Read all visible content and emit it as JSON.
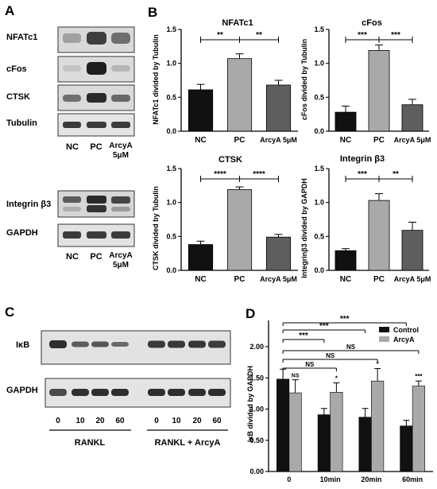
{
  "panels": {
    "A": "A",
    "B": "B",
    "C": "C",
    "D": "D"
  },
  "blots_a": {
    "rows1": [
      "NFATc1",
      "cFos",
      "CTSK",
      "Tubulin"
    ],
    "rows2": [
      "Integrin β3",
      "GAPDH"
    ],
    "lanes": [
      "NC",
      "PC",
      "ArcyA",
      "5μM"
    ]
  },
  "blots_c": {
    "rows": [
      "IκB",
      "GAPDH"
    ],
    "times": [
      "0",
      "10",
      "20",
      "60",
      "0",
      "10",
      "20",
      "60"
    ],
    "groups": [
      "RANKL",
      "RANKL + ArcyA"
    ]
  },
  "colors": {
    "NC": "#111111",
    "PC": "#a9a9a9",
    "ArcyA": "#5e5e5e",
    "Control": "#111111",
    "ArcyA_D": "#a9a9a9"
  },
  "chart_data": [
    {
      "type": "bar",
      "title": "NFATc1",
      "ylabel": "NFATc1 divided by Tubulin",
      "categories": [
        "NC",
        "PC",
        "ArcyA 5μM"
      ],
      "values": [
        0.61,
        1.07,
        0.68
      ],
      "errors": [
        0.08,
        0.07,
        0.07
      ],
      "ylim": [
        0,
        1.5
      ],
      "yticks": [
        "0.0",
        "0.5",
        "1.0",
        "1.5"
      ],
      "significance": [
        "**",
        "**"
      ]
    },
    {
      "type": "bar",
      "title": "cFos",
      "ylabel": "cFos divided by Tubulin",
      "categories": [
        "NC",
        "PC",
        "ArcyA 5μM"
      ],
      "values": [
        0.28,
        1.19,
        0.39
      ],
      "errors": [
        0.09,
        0.08,
        0.08
      ],
      "ylim": [
        0,
        1.5
      ],
      "yticks": [
        "0.0",
        "0.5",
        "1.0",
        "1.5"
      ],
      "significance": [
        "***",
        "***"
      ]
    },
    {
      "type": "bar",
      "title": "CTSK",
      "ylabel": "CTSK divided by Tubulin",
      "categories": [
        "NC",
        "PC",
        "ArcyA 5μM"
      ],
      "values": [
        0.38,
        1.19,
        0.49
      ],
      "errors": [
        0.05,
        0.04,
        0.04
      ],
      "ylim": [
        0,
        1.5
      ],
      "yticks": [
        "0.0",
        "0.5",
        "1.0",
        "1.5"
      ],
      "significance": [
        "****",
        "****"
      ]
    },
    {
      "type": "bar",
      "title": "Integrin β3",
      "ylabel": "Integrinβ3 divided by GAPDH",
      "categories": [
        "NC",
        "PC",
        "ArcyA 5μM"
      ],
      "values": [
        0.29,
        1.03,
        0.59
      ],
      "errors": [
        0.03,
        0.1,
        0.12
      ],
      "ylim": [
        0,
        1.5
      ],
      "yticks": [
        "0.0",
        "0.5",
        "1.0",
        "1.5"
      ],
      "significance": [
        "***",
        "**"
      ]
    },
    {
      "type": "bar",
      "ylabel": "IκB divided by GAPDH",
      "categories": [
        "0",
        "10min",
        "20min",
        "60min"
      ],
      "series": [
        {
          "name": "Control",
          "values": [
            1.48,
            0.91,
            0.87,
            0.73
          ],
          "errors": [
            0.16,
            0.1,
            0.14,
            0.09
          ],
          "labels": [
            "",
            "",
            "",
            ""
          ]
        },
        {
          "name": "ArcyA",
          "values": [
            1.26,
            1.27,
            1.45,
            1.37
          ],
          "errors": [
            0.21,
            0.15,
            0.2,
            0.08
          ],
          "labels": [
            "NS",
            "*",
            "*",
            "***"
          ]
        }
      ],
      "ylim": [
        0,
        2.0
      ],
      "yticks": [
        "0.00",
        "0.50",
        "1.00",
        "1.50",
        "2.00"
      ],
      "brackets": [
        "***",
        "***",
        "***",
        "NS",
        "NS",
        "NS"
      ],
      "legend": "top-right"
    }
  ]
}
